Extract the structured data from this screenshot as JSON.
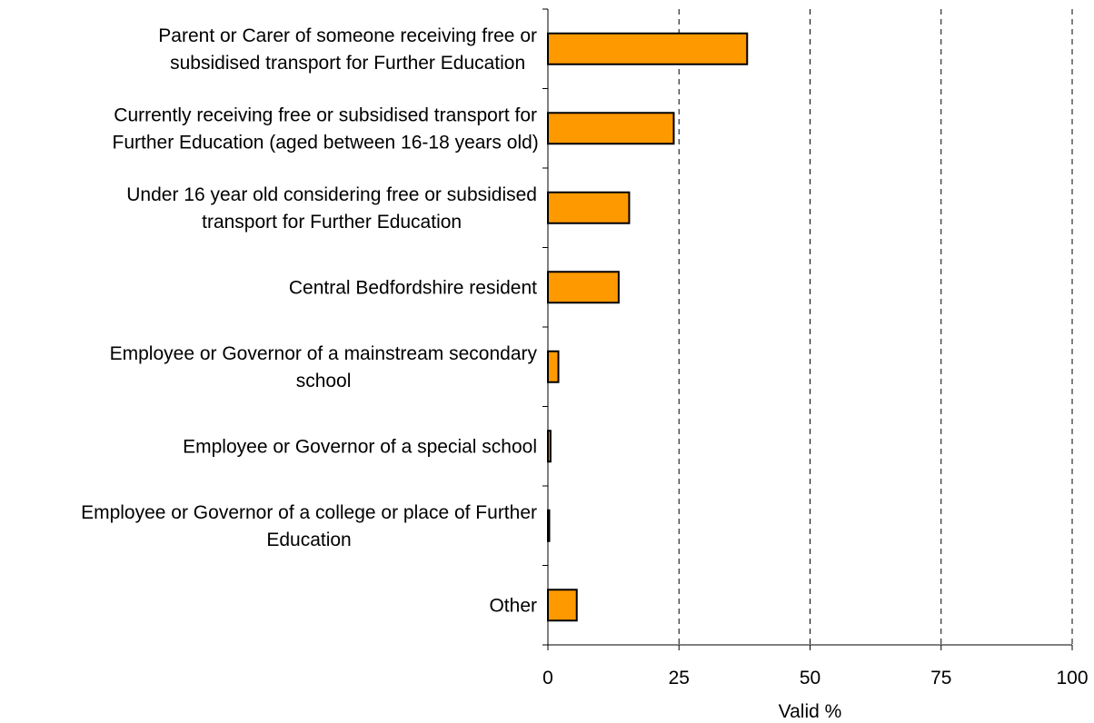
{
  "chart_data": {
    "type": "bar",
    "orientation": "horizontal",
    "categories": [
      [
        "Parent or Carer of someone receiving free or",
        "subsidised transport for Further Education"
      ],
      [
        "Currently receiving free or subsidised transport for",
        "Further Education (aged between 16-18 years old)"
      ],
      [
        "Under 16 year old considering free or subsidised",
        "transport for Further Education"
      ],
      [
        "Central Bedfordshire resident"
      ],
      [
        "Employee or Governor of a mainstream secondary",
        "school"
      ],
      [
        "Employee or Governor of a special school"
      ],
      [
        "Employee or Governor  of a college or place of Further",
        "Education"
      ],
      [
        "Other"
      ]
    ],
    "values": [
      38,
      24,
      15.5,
      13.5,
      2,
      0.5,
      0.2,
      5.5
    ],
    "xlabel": "Valid %",
    "ylabel": "",
    "xlim": [
      0,
      100
    ],
    "xticks": [
      0,
      25,
      50,
      75,
      100
    ],
    "grid": "vertical dashed",
    "legend": "none",
    "bar_color": "#FF9900",
    "bar_edge_color": "#000000"
  }
}
